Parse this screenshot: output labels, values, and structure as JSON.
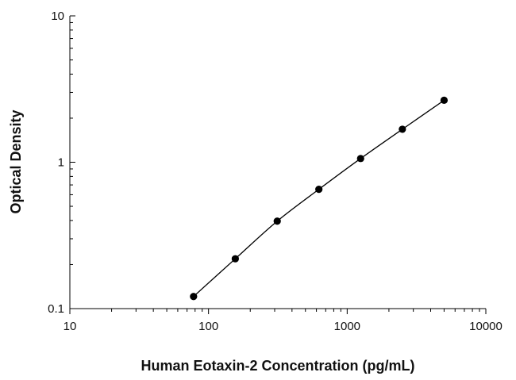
{
  "chart_data": {
    "type": "scatter",
    "title": "",
    "xlabel": "Human Eotaxin-2 Concentration (pg/mL)",
    "ylabel": "Optical Density",
    "x_scale": "log",
    "y_scale": "log",
    "xlim": [
      10,
      10000
    ],
    "ylim": [
      0.1,
      10
    ],
    "x_ticks": [
      10,
      100,
      1000,
      10000
    ],
    "x_tick_labels": [
      "10",
      "100",
      "1000",
      "10000"
    ],
    "y_ticks": [
      0.1,
      1,
      10
    ],
    "y_tick_labels": [
      "0.1",
      "1",
      "10"
    ],
    "grid": false,
    "legend": "none",
    "fit_line": true,
    "marker_color": "#000000",
    "line_color": "#000000",
    "series": [
      {
        "x": [
          78,
          156,
          313,
          625,
          1250,
          2500,
          5000
        ],
        "y": [
          0.121,
          0.219,
          0.396,
          0.653,
          1.06,
          1.68,
          2.65
        ]
      }
    ]
  }
}
